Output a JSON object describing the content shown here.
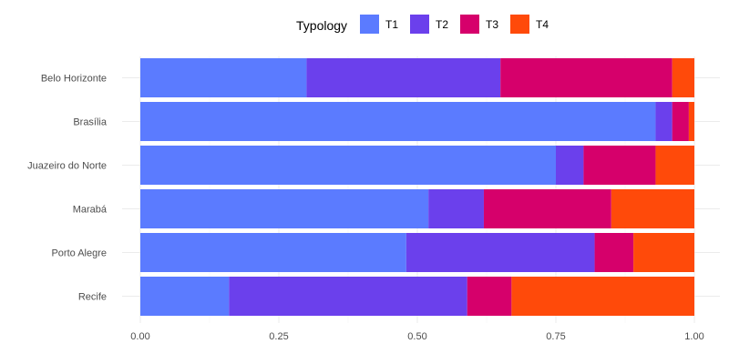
{
  "chart_data": {
    "type": "bar",
    "orientation": "horizontal",
    "stacked": true,
    "categories": [
      "Belo Horizonte",
      "Brasília",
      "Juazeiro do Norte",
      "Marabá",
      "Porto Alegre",
      "Recife"
    ],
    "series": [
      {
        "name": "T1",
        "color": "#5B7BFF",
        "values": [
          0.3,
          0.93,
          0.75,
          0.52,
          0.48,
          0.16
        ]
      },
      {
        "name": "T2",
        "color": "#6B40EC",
        "values": [
          0.35,
          0.03,
          0.05,
          0.1,
          0.34,
          0.43
        ]
      },
      {
        "name": "T3",
        "color": "#D6006B",
        "values": [
          0.31,
          0.03,
          0.13,
          0.23,
          0.07,
          0.08
        ]
      },
      {
        "name": "T4",
        "color": "#FF4A0A",
        "values": [
          0.04,
          0.01,
          0.07,
          0.15,
          0.11,
          0.33
        ]
      }
    ],
    "xlim": [
      0,
      1
    ],
    "xticks": [
      "0.00",
      "0.25",
      "0.50",
      "0.75",
      "1.00"
    ],
    "legend": {
      "title": "Typology",
      "position": "top"
    },
    "grid": true
  }
}
